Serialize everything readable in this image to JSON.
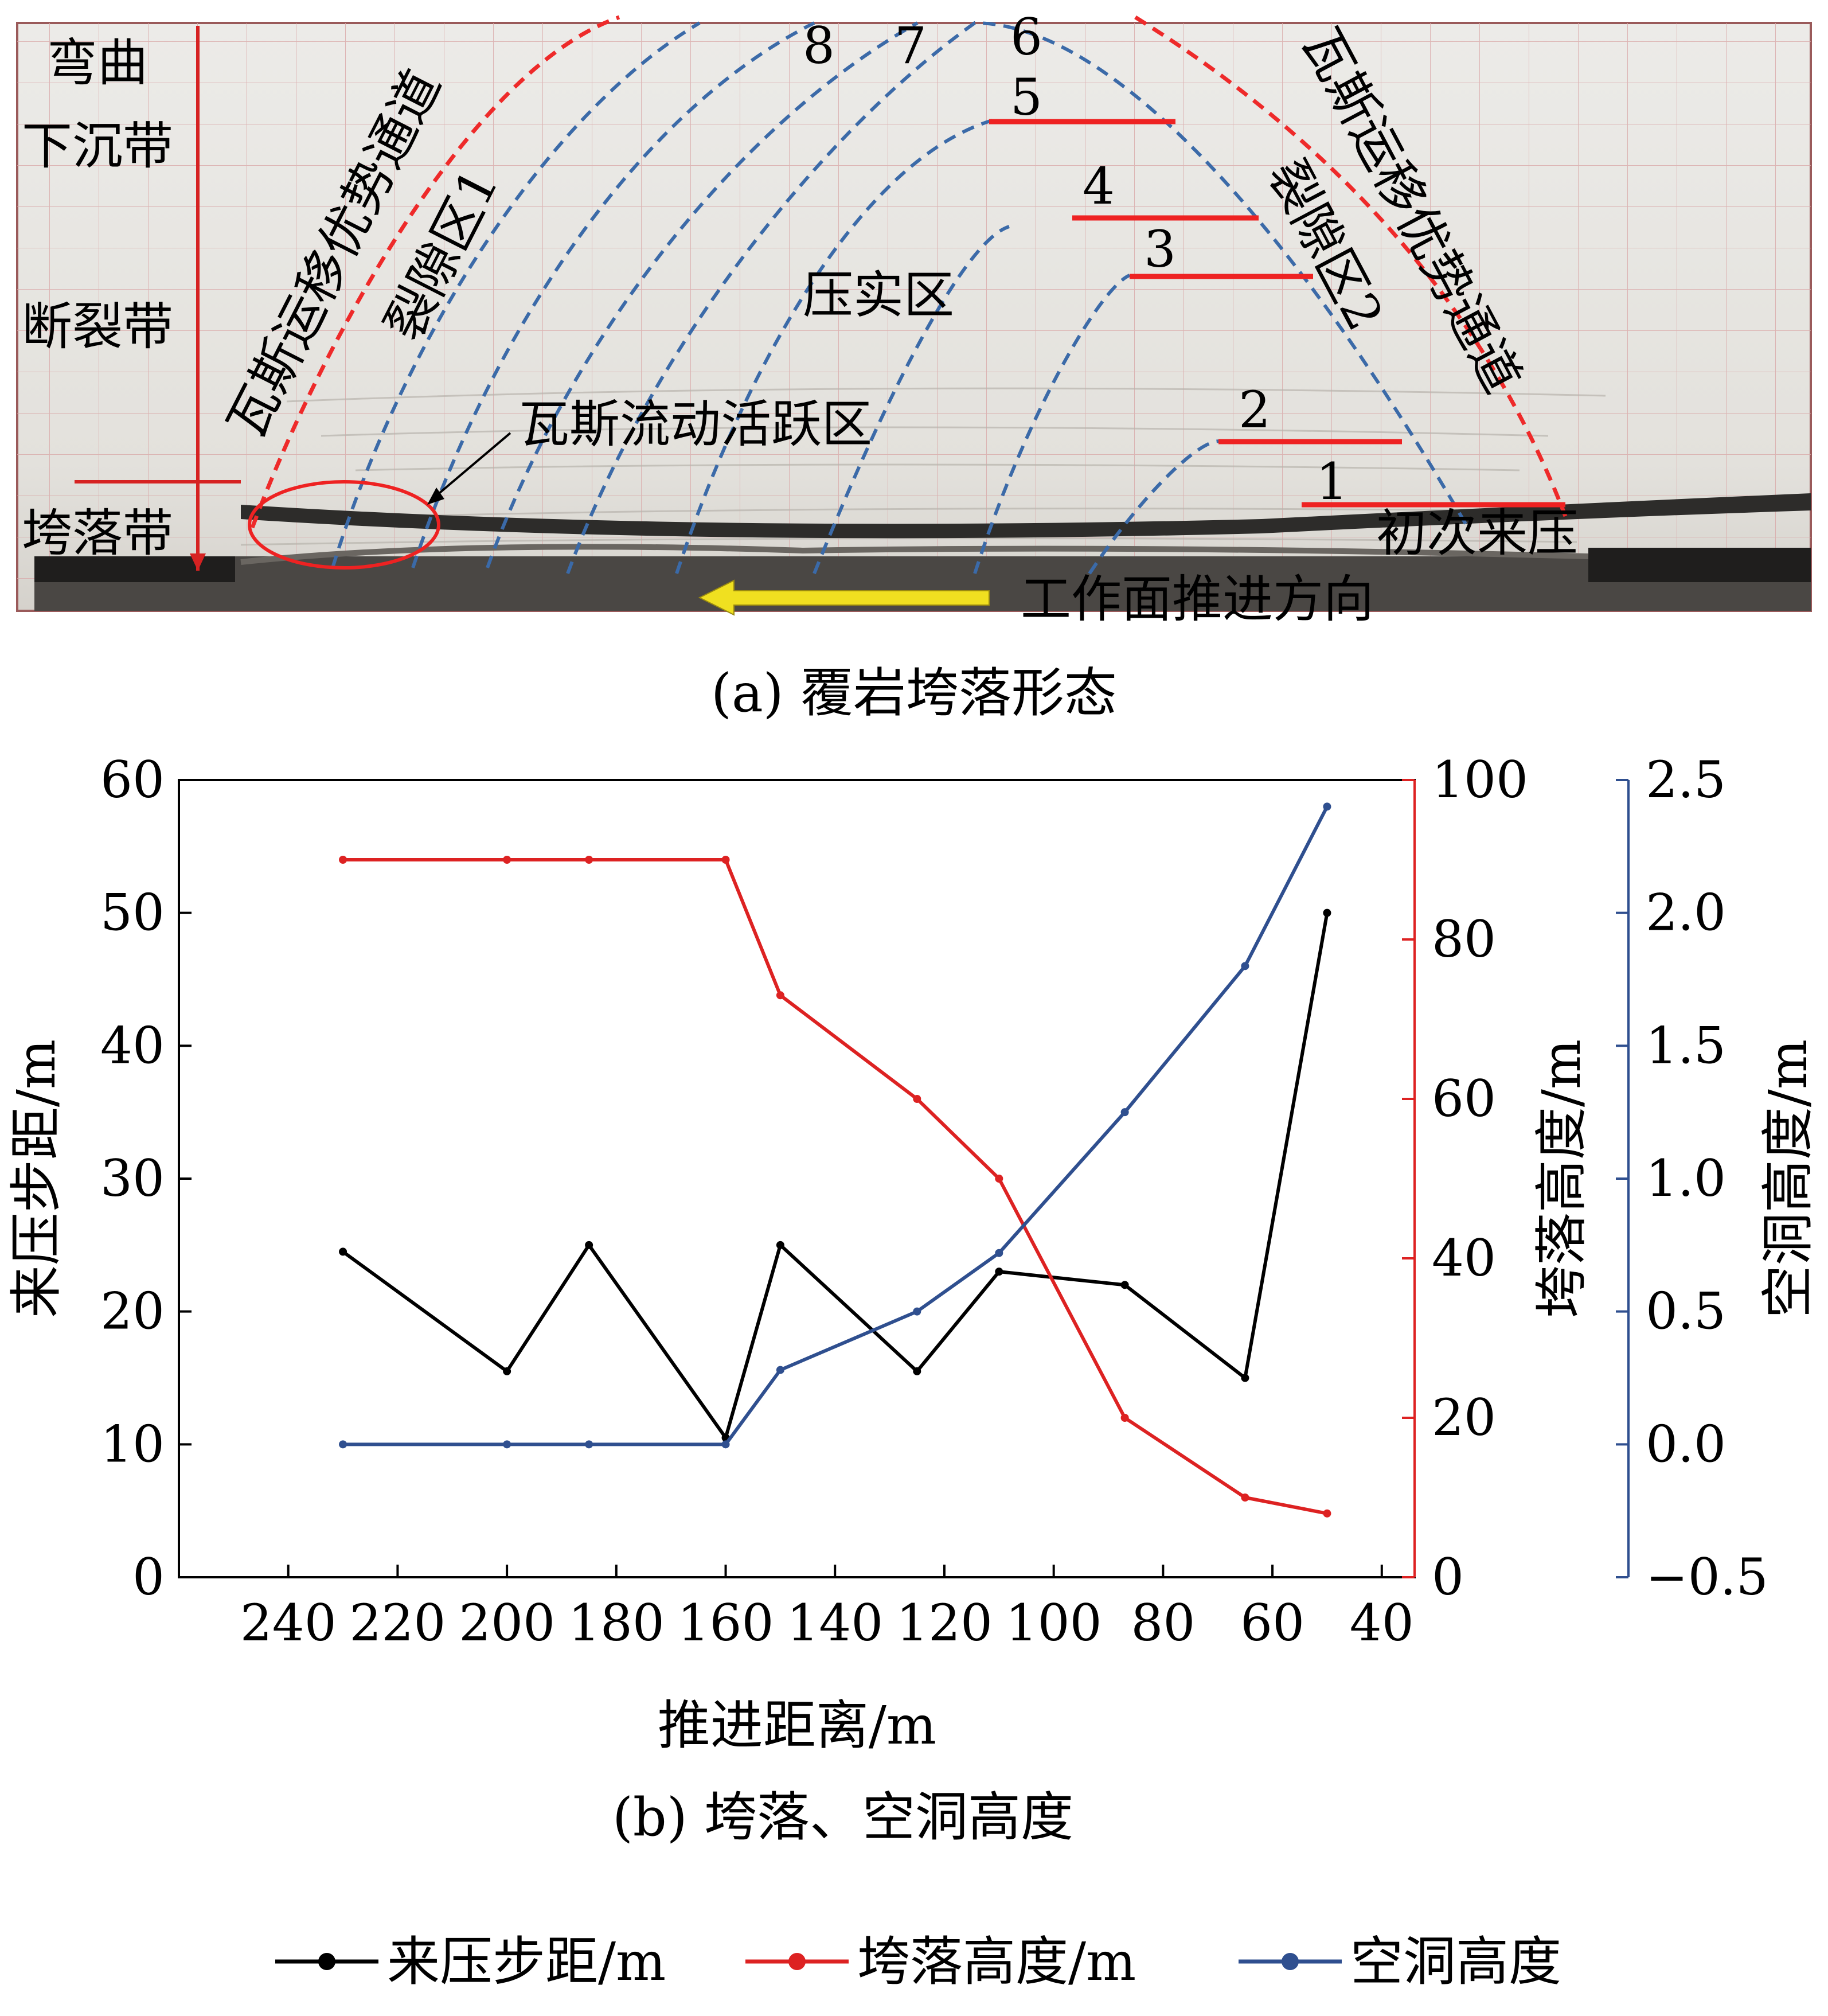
{
  "panel_a": {
    "caption": "(a) 覆岩垮落形态",
    "zones_left": [
      "弯曲",
      "下沉带",
      "断裂带",
      "垮落带"
    ],
    "channel_left": "瓦斯运移优势通道",
    "channel_right": "瓦斯运移优势通道",
    "fracture_zone_1": "裂隙区1",
    "fracture_zone_2": "裂隙区2",
    "compaction_zone": "压实区",
    "gas_active_zone": "瓦斯流动活跃区",
    "first_weighting": "初次来压",
    "advance_direction": "工作面推进方向",
    "line_numbers": [
      "8",
      "7",
      "6",
      "5",
      "4",
      "3",
      "2",
      "1"
    ],
    "colors": {
      "red_dashed": "#ee2a2a",
      "blue_dashed": "#3b6aa8",
      "red_marker": "#ee2222",
      "arrow": "#f0e020"
    }
  },
  "panel_b_caption": "(b) 垮落、空洞高度",
  "legend": [
    "来压步距/m",
    "垮落高度/m",
    "空洞高度"
  ],
  "chart_data": {
    "type": "line",
    "xlabel": "推进距离/m",
    "x_ticks": [
      "240",
      "220",
      "200",
      "180",
      "160",
      "140",
      "120",
      "100",
      "80",
      "60",
      "40"
    ],
    "x_reversed": true,
    "xlim": [
      260,
      34
    ],
    "axes": [
      {
        "side": "left",
        "label": "来压步距/m",
        "ylim": [
          0,
          60
        ],
        "ticks": [
          "0",
          "10",
          "20",
          "30",
          "40",
          "50",
          "60"
        ],
        "color": "#000000"
      },
      {
        "side": "right",
        "label": "垮落高度/m",
        "ylim": [
          0,
          100
        ],
        "ticks": [
          "0",
          "20",
          "40",
          "60",
          "80",
          "100"
        ],
        "color": "#dd2222"
      },
      {
        "side": "right-outer",
        "label": "空洞高度/m",
        "ylim": [
          -0.5,
          2.5
        ],
        "ticks": [
          "−0.5",
          "0.0",
          "0.5",
          "1.0",
          "1.5",
          "2.0",
          "2.5"
        ],
        "color": "#2f4f8f"
      }
    ],
    "series": [
      {
        "name": "来压步距/m",
        "axis": 0,
        "color": "#000000",
        "x": [
          230,
          200,
          185,
          160,
          150,
          125,
          110,
          87,
          65,
          50
        ],
        "y": [
          24.5,
          15.5,
          25,
          10.5,
          25,
          15.5,
          23,
          22,
          15,
          50
        ]
      },
      {
        "name": "垮落高度/m",
        "axis": 1,
        "color": "#dd2222",
        "x": [
          230,
          200,
          185,
          160,
          150,
          125,
          110,
          87,
          65,
          50
        ],
        "y": [
          90,
          90,
          90,
          90,
          73,
          60,
          50,
          20,
          10,
          8
        ]
      },
      {
        "name": "空洞高度",
        "axis": 2,
        "color": "#2f4f8f",
        "x": [
          230,
          200,
          185,
          160,
          150,
          125,
          110,
          87,
          65,
          50
        ],
        "y": [
          0,
          0,
          0,
          0,
          0.28,
          0.5,
          0.72,
          1.25,
          1.8,
          2.4
        ]
      }
    ]
  }
}
